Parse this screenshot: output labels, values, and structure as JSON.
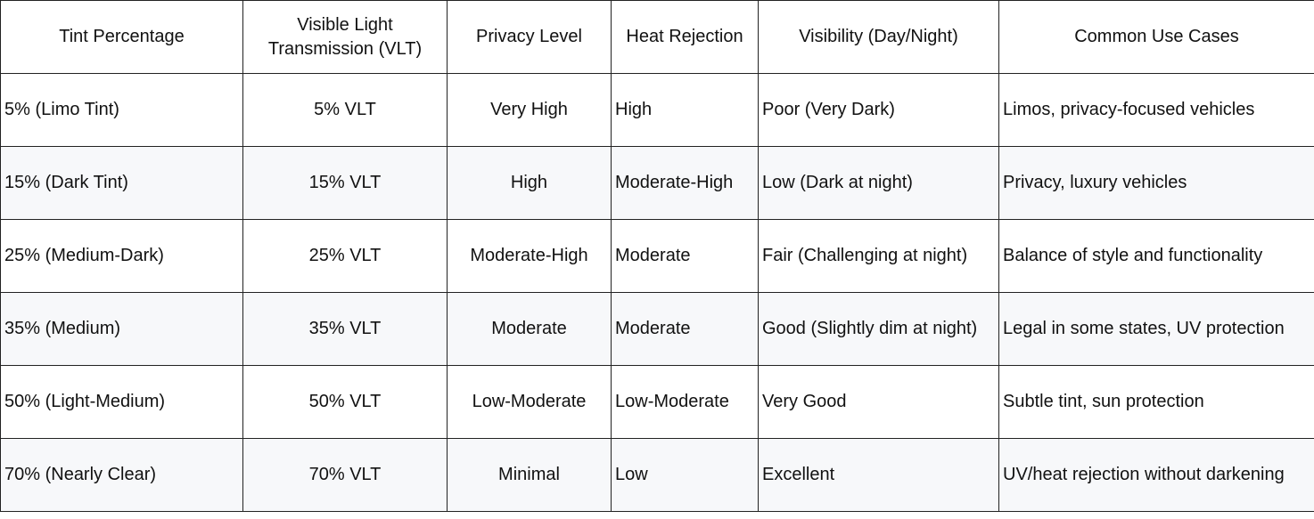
{
  "table": {
    "headers": [
      "Tint Percentage",
      "Visible Light Transmission (VLT)",
      "Privacy Level",
      "Heat Rejection",
      "Visibility (Day/Night)",
      "Common Use Cases"
    ],
    "rows": [
      [
        "5% (Limo Tint)",
        "5% VLT",
        "Very High",
        "High",
        "Poor (Very Dark)",
        "Limos, privacy-focused vehicles"
      ],
      [
        "15% (Dark Tint)",
        "15% VLT",
        "High",
        "Moderate-High",
        "Low (Dark at night)",
        "Privacy, luxury vehicles"
      ],
      [
        "25% (Medium-Dark)",
        "25% VLT",
        "Moderate-High",
        "Moderate",
        "Fair (Challenging at night)",
        "Balance of style and functionality"
      ],
      [
        "35% (Medium)",
        "35% VLT",
        "Moderate",
        "Moderate",
        "Good (Slightly dim at night)",
        "Legal in some states, UV protection"
      ],
      [
        "50% (Light-Medium)",
        "50% VLT",
        "Low-Moderate",
        "Low-Moderate",
        "Very Good",
        "Subtle tint, sun protection"
      ],
      [
        "70% (Nearly Clear)",
        "70% VLT",
        "Minimal",
        "Low",
        "Excellent",
        "UV/heat rejection without darkening"
      ]
    ]
  }
}
